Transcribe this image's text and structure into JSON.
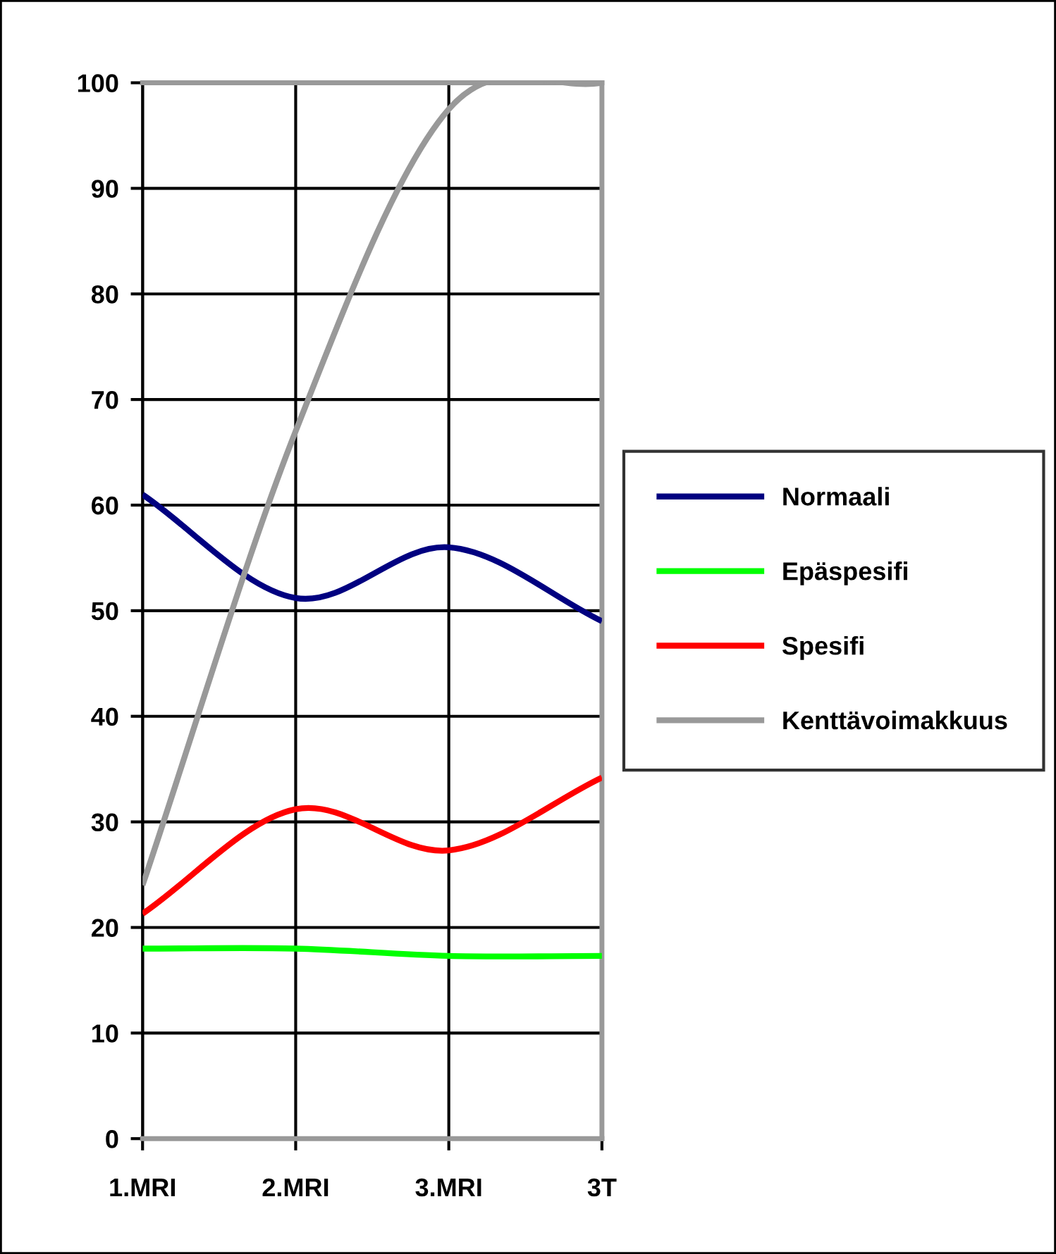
{
  "chart_data": {
    "type": "line",
    "categories": [
      "1.MRI",
      "2.MRI",
      "3.MRI",
      "3T"
    ],
    "series": [
      {
        "name": "Normaali",
        "color": "#000080",
        "values": [
          61,
          51.2,
          56,
          49
        ]
      },
      {
        "name": "Epäspesifi",
        "color": "#00ff00",
        "values": [
          18,
          18,
          17.3,
          17.3
        ]
      },
      {
        "name": "Spesifi",
        "color": "#ff0000",
        "values": [
          21.3,
          31.2,
          27.3,
          34.2
        ]
      },
      {
        "name": "Kenttävoimakkuus",
        "color": "#999999",
        "values": [
          24,
          67,
          97.5,
          100
        ]
      }
    ],
    "ylim": [
      0,
      100
    ],
    "yticks": [
      0,
      10,
      20,
      30,
      40,
      50,
      60,
      70,
      80,
      90,
      100
    ],
    "grid": true,
    "legend": "right",
    "marker": "none",
    "line_style": "solid"
  }
}
